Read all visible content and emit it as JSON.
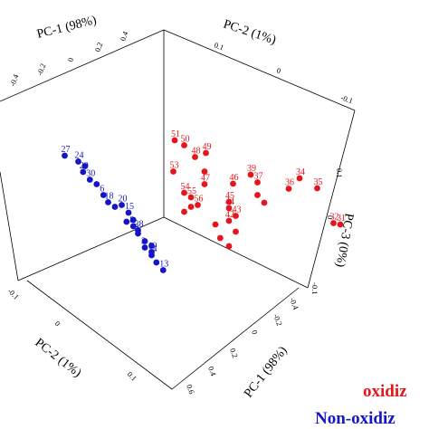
{
  "chart_data": {
    "type": "scatter",
    "axes": {
      "pc1": {
        "label": "PC-1 (98%)",
        "ticks": [
          "-0.4",
          "-0.2",
          "0",
          "0.2",
          "0.4"
        ]
      },
      "pc2": {
        "label": "PC-2 (1%)",
        "ticks": [
          "0.1",
          "0",
          "-0.1"
        ]
      },
      "pc3": {
        "label": "PC-3 (0%)",
        "ticks": [
          "0.1",
          "0",
          "-0.1"
        ]
      },
      "pc2_front": {
        "label": "PC-2 (1%)",
        "ticks": [
          "0.1",
          "0",
          "-0.1"
        ]
      },
      "pc1_front": {
        "label": "PC-1 (98%)",
        "ticks": [
          "-0.4",
          "-0.2",
          "0",
          "0.2",
          "0.4",
          "0.6"
        ]
      }
    },
    "series": [
      {
        "name": "oxidiz",
        "color": "#e8141b",
        "points": [
          {
            "pc1": 0.42,
            "pc2": 0.04,
            "pc3": 0.06,
            "label": "51"
          },
          {
            "pc1": 0.44,
            "pc2": 0.03,
            "pc3": 0.055,
            "label": "50"
          },
          {
            "pc1": 0.46,
            "pc2": 0.05,
            "pc3": 0.05,
            "label": "49"
          },
          {
            "pc1": 0.45,
            "pc2": 0.04,
            "pc3": 0.04,
            "label": "48"
          },
          {
            "pc1": 0.43,
            "pc2": 0.02,
            "pc3": 0.01,
            "label": "53"
          },
          {
            "pc1": 0.47,
            "pc2": 0.03,
            "pc3": 0.0,
            "label": "47"
          },
          {
            "pc1": 0.5,
            "pc2": 0.05,
            "pc3": 0.01,
            "label": "46"
          },
          {
            "pc1": 0.52,
            "pc2": 0.06,
            "pc3": 0.03,
            "label": "39"
          },
          {
            "pc1": 0.53,
            "pc2": 0.06,
            "pc3": 0.02,
            "label": "37"
          },
          {
            "pc1": 0.58,
            "pc2": 0.08,
            "pc3": 0.04,
            "label": "34"
          },
          {
            "pc1": 0.6,
            "pc2": 0.09,
            "pc3": 0.03,
            "label": "35"
          },
          {
            "pc1": 0.57,
            "pc2": 0.07,
            "pc3": 0.02,
            "label": "36"
          },
          {
            "pc1": 0.63,
            "pc2": 0.08,
            "pc3": -0.02,
            "label": "32"
          },
          {
            "pc1": 0.64,
            "pc2": 0.08,
            "pc3": -0.02,
            "label": "31"
          },
          {
            "pc1": 0.44,
            "pc2": 0.03,
            "pc3": -0.02,
            "label": "54"
          },
          {
            "pc1": 0.45,
            "pc2": 0.03,
            "pc3": -0.025,
            "label": "55"
          },
          {
            "pc1": 0.46,
            "pc2": 0.03,
            "pc3": -0.035,
            "label": "56"
          },
          {
            "pc1": 0.5,
            "pc2": 0.04,
            "pc3": -0.02,
            "label": "45"
          },
          {
            "pc1": 0.5,
            "pc2": 0.04,
            "pc3": -0.03,
            "label": "44"
          },
          {
            "pc1": 0.51,
            "pc2": 0.04,
            "pc3": -0.04,
            "label": "43"
          },
          {
            "pc1": 0.5,
            "pc2": 0.04,
            "pc3": -0.05,
            "label": "42"
          },
          {
            "pc1": 0.45,
            "pc2": 0.03,
            "pc3": -0.04,
            "label": ""
          },
          {
            "pc1": 0.44,
            "pc2": 0.03,
            "pc3": -0.05,
            "label": ""
          },
          {
            "pc1": 0.48,
            "pc2": 0.04,
            "pc3": -0.06,
            "label": ""
          },
          {
            "pc1": 0.51,
            "pc2": 0.04,
            "pc3": -0.065,
            "label": ""
          },
          {
            "pc1": 0.49,
            "pc2": 0.035,
            "pc3": -0.08,
            "label": ""
          },
          {
            "pc1": 0.5,
            "pc2": 0.04,
            "pc3": -0.09,
            "label": ""
          },
          {
            "pc1": 0.53,
            "pc2": 0.06,
            "pc3": 0.0,
            "label": ""
          },
          {
            "pc1": 0.54,
            "pc2": 0.06,
            "pc3": -0.01,
            "label": ""
          },
          {
            "pc1": 0.47,
            "pc2": 0.03,
            "pc3": 0.02,
            "label": ""
          }
        ]
      },
      {
        "name": "Non-oxidiz",
        "color": "#1414c8",
        "points": [
          {
            "pc1": 0.3,
            "pc2": -0.03,
            "pc3": 0.0,
            "label": "27"
          },
          {
            "pc1": 0.32,
            "pc2": -0.03,
            "pc3": -0.005,
            "label": "24"
          },
          {
            "pc1": 0.33,
            "pc2": -0.035,
            "pc3": -0.02,
            "label": "29"
          },
          {
            "pc1": 0.34,
            "pc2": -0.035,
            "pc3": -0.03,
            "label": "30"
          },
          {
            "pc1": 0.35,
            "pc2": -0.035,
            "pc3": -0.035,
            "label": ""
          },
          {
            "pc1": 0.36,
            "pc2": -0.035,
            "pc3": -0.05,
            "label": "6"
          },
          {
            "pc1": 0.37,
            "pc2": -0.04,
            "pc3": -0.06,
            "label": "18"
          },
          {
            "pc1": 0.39,
            "pc2": -0.04,
            "pc3": -0.06,
            "label": "20"
          },
          {
            "pc1": 0.4,
            "pc2": -0.04,
            "pc3": -0.07,
            "label": "15"
          },
          {
            "pc1": 0.41,
            "pc2": -0.045,
            "pc3": -0.08,
            "label": ""
          },
          {
            "pc1": 0.41,
            "pc2": -0.045,
            "pc3": -0.09,
            "label": "8"
          },
          {
            "pc1": 0.42,
            "pc2": -0.05,
            "pc3": -0.095,
            "label": "28"
          },
          {
            "pc1": 0.42,
            "pc2": -0.05,
            "pc3": -0.1,
            "label": "9"
          },
          {
            "pc1": 0.43,
            "pc2": -0.05,
            "pc3": -0.11,
            "label": ""
          },
          {
            "pc1": 0.43,
            "pc2": -0.05,
            "pc3": -0.12,
            "label": "3"
          },
          {
            "pc1": 0.44,
            "pc2": -0.05,
            "pc3": -0.125,
            "label": "10"
          },
          {
            "pc1": 0.44,
            "pc2": -0.05,
            "pc3": -0.13,
            "label": "14"
          },
          {
            "pc1": 0.45,
            "pc2": -0.055,
            "pc3": -0.14,
            "label": ""
          },
          {
            "pc1": 0.46,
            "pc2": -0.055,
            "pc3": -0.15,
            "label": "13"
          },
          {
            "pc1": 0.38,
            "pc2": -0.04,
            "pc3": -0.065,
            "label": ""
          },
          {
            "pc1": 0.4,
            "pc2": -0.045,
            "pc3": -0.085,
            "label": ""
          },
          {
            "pc1": 0.44,
            "pc2": -0.05,
            "pc3": -0.115,
            "label": ""
          },
          {
            "pc1": 0.33,
            "pc2": -0.03,
            "pc3": -0.01,
            "label": ""
          }
        ]
      }
    ],
    "legend": [
      {
        "label": "oxidiz",
        "color": "#e8141b"
      },
      {
        "label": "Non-oxidiz",
        "color": "#1414c8"
      }
    ]
  }
}
